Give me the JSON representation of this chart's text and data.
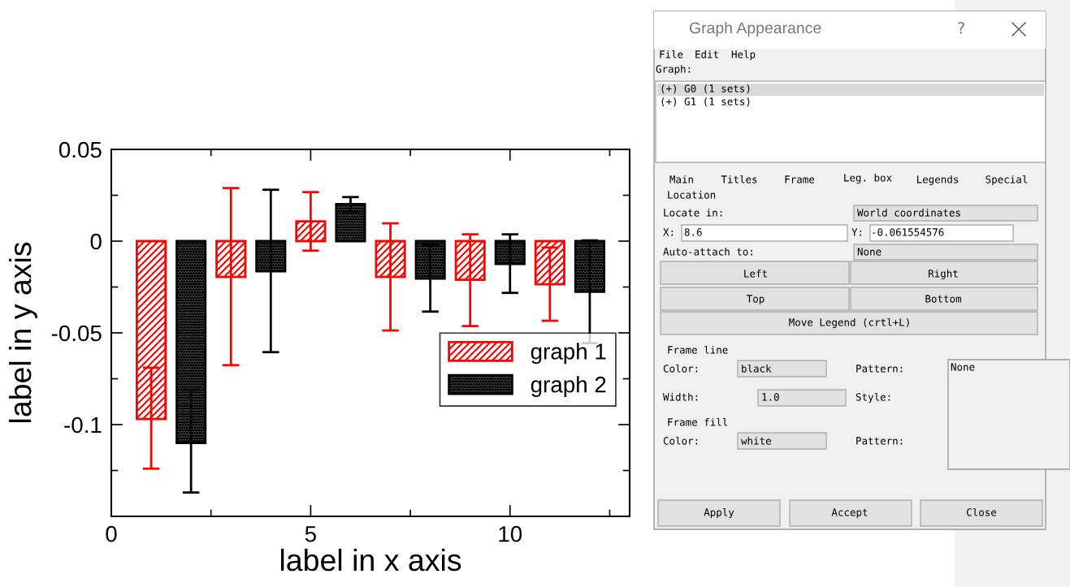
{
  "chart_data": [
    {
      "type": "bar",
      "xlabel": "label in x axis",
      "ylabel": "label in y axis",
      "xlim": [
        0,
        13
      ],
      "xticks": [
        0,
        {
          "value": 2.5,
          "label": null
        },
        5,
        {
          "value": 7.5,
          "label": null
        },
        10,
        {
          "value": 12.5,
          "label": null
        }
      ],
      "ylim": [
        -0.15,
        0.05
      ],
      "yticks": [
        {
          "value": -0.15,
          "label": null
        },
        {
          "value": -0.125,
          "label": null
        },
        -0.1,
        {
          "value": -0.075,
          "label": null
        },
        -0.05,
        {
          "value": -0.025,
          "label": null
        },
        0,
        {
          "value": 0.025,
          "label": null
        },
        0.05
      ],
      "legend": "right",
      "grid": false,
      "series": [
        {
          "name": "graph 1",
          "color": "#ff0000",
          "x": [
            1,
            3,
            5,
            7,
            9,
            11
          ],
          "values": [
            -0.097,
            -0.0195,
            0.0108,
            -0.0195,
            -0.0211,
            -0.0235
          ],
          "errors": [
            [
              -0.124,
              -0.069
            ],
            [
              -0.0676,
              0.0289
            ],
            [
              -0.0052,
              0.0267
            ],
            [
              -0.0487,
              0.0097
            ],
            [
              -0.0463,
              0.0037
            ],
            [
              -0.0434,
              -0.0035
            ]
          ]
        },
        {
          "name": "graph 2",
          "color": "#000000",
          "x": [
            2,
            4,
            6,
            8,
            10,
            12
          ],
          "values": [
            -0.11,
            -0.0164,
            0.0202,
            -0.0204,
            -0.0124,
            -0.0276
          ],
          "errors": [
            [
              -0.137,
              -0.081
            ],
            [
              -0.0605,
              0.028
            ],
            [
              0.016,
              0.024
            ],
            [
              -0.0384,
              -0.0021
            ],
            [
              -0.0282,
              0.0037
            ],
            [
              -0.0556,
              0.0004
            ]
          ]
        }
      ]
    },
    {
      "type": "other",
      "title": "Graph Appearance",
      "annotations": [
        "?",
        "File",
        "Edit",
        "Help",
        "Graph:",
        "(+) G0 (1 sets)",
        "(+) G1 (1 sets)",
        "Main",
        "Titles",
        "Frame",
        "Leg. box",
        "Legends",
        "Special",
        "Location",
        "Locate in:",
        "World coordinates",
        "X:",
        "8.6",
        "Y:",
        "-0.061554576",
        "Auto-attach to:",
        "None",
        "Left",
        "Right",
        "Top",
        "Bottom",
        "Move Legend (crtl+L)",
        "Frame line",
        "Color:",
        "black",
        "Pattern:",
        "Width:",
        "1.0",
        "Style:",
        "Frame fill",
        "Color:",
        "white",
        "Pattern:",
        "None",
        "Apply",
        "Accept",
        "Close"
      ]
    }
  ]
}
